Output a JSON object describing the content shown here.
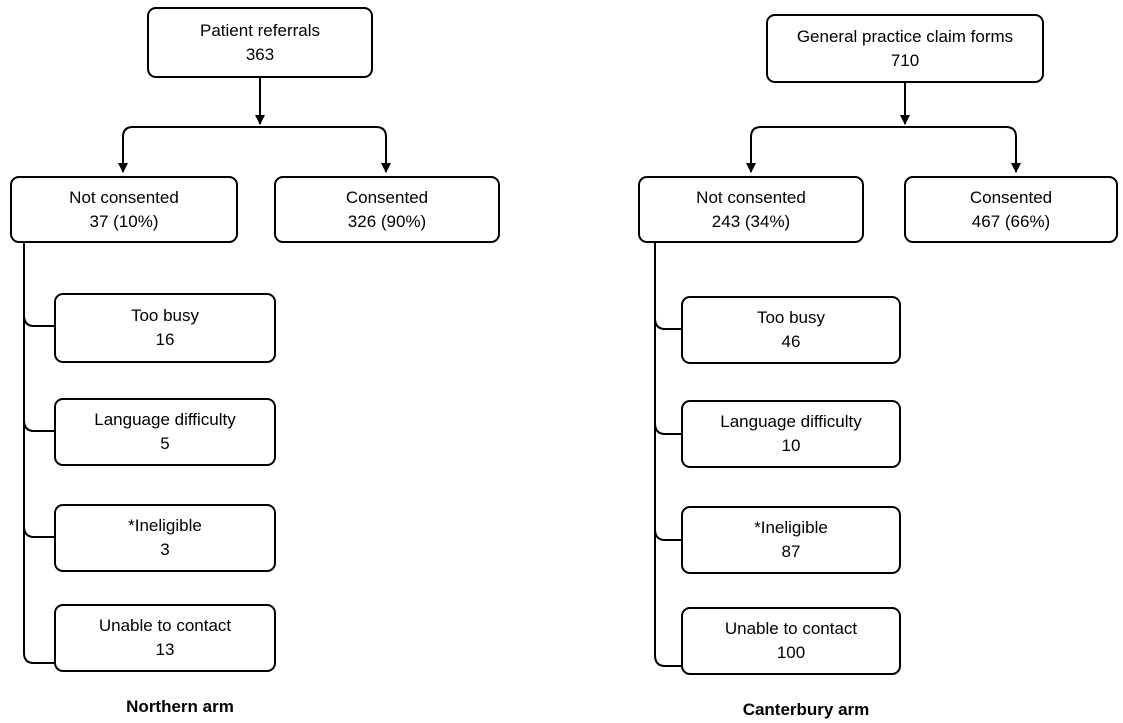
{
  "northern": {
    "arm_label": "Northern arm",
    "root": {
      "label": "Patient referrals",
      "value": "363"
    },
    "not_consented": {
      "label": "Not consented",
      "value": "37 (10%)"
    },
    "consented": {
      "label": "Consented",
      "value": "326 (90%)"
    },
    "reasons": [
      {
        "label": "Too busy",
        "value": "16"
      },
      {
        "label": "Language difficulty",
        "value": "5"
      },
      {
        "label": "*Ineligible",
        "value": "3"
      },
      {
        "label": "Unable to contact",
        "value": "13"
      }
    ]
  },
  "canterbury": {
    "arm_label": "Canterbury arm",
    "root": {
      "label": "General practice claim forms",
      "value": "710"
    },
    "not_consented": {
      "label": "Not consented",
      "value": "243 (34%)"
    },
    "consented": {
      "label": "Consented",
      "value": "467 (66%)"
    },
    "reasons": [
      {
        "label": "Too busy",
        "value": "46"
      },
      {
        "label": "Language difficulty",
        "value": "10"
      },
      {
        "label": "*Ineligible",
        "value": "87"
      },
      {
        "label": "Unable to contact",
        "value": "100"
      }
    ]
  }
}
